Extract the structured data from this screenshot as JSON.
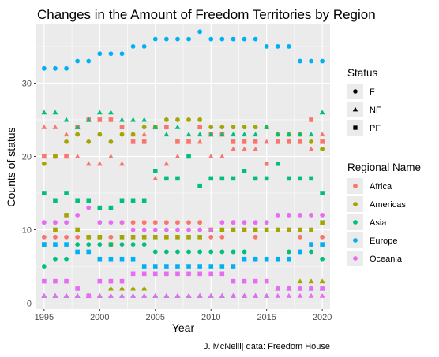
{
  "chart_data": {
    "type": "scatter",
    "title": "Changes in the Amount of Freedom Territories by Region",
    "xlabel": "Year",
    "ylabel": "Counts of status",
    "caption": "J. McNeill| data: Freedom House",
    "xlim": [
      1994.3,
      2020.7
    ],
    "ylim": [
      -0.8,
      38.0
    ],
    "xticks": [
      1995,
      2000,
      2005,
      2010,
      2015,
      2020
    ],
    "yticks": [
      0,
      10,
      20,
      30
    ],
    "grid": true,
    "legend_position": "right",
    "shape_legend": {
      "title": "Status",
      "items": [
        {
          "key": "F",
          "label": "F",
          "shape": "circle"
        },
        {
          "key": "NF",
          "label": "NF",
          "shape": "triangle"
        },
        {
          "key": "PF",
          "label": "PF",
          "shape": "square"
        }
      ]
    },
    "color_legend": {
      "title": "Regional Name",
      "items": [
        {
          "key": "Africa",
          "label": "Africa",
          "color": "#F8766D"
        },
        {
          "key": "Americas",
          "label": "Americas",
          "color": "#A3A500"
        },
        {
          "key": "Asia",
          "label": "Asia",
          "color": "#00BF7D"
        },
        {
          "key": "Europe",
          "label": "Europe",
          "color": "#00B0F6"
        },
        {
          "key": "Oceania",
          "label": "Oceania",
          "color": "#E76BF3"
        }
      ]
    },
    "x": [
      1995,
      1996,
      1997,
      1998,
      1999,
      2000,
      2001,
      2002,
      2003,
      2004,
      2005,
      2006,
      2007,
      2008,
      2009,
      2010,
      2011,
      2012,
      2013,
      2014,
      2015,
      2016,
      2017,
      2018,
      2019,
      2020
    ],
    "series": [
      {
        "region": "Africa",
        "status": "F",
        "values": [
          9,
          9,
          9,
          9,
          9,
          9,
          9,
          11,
          11,
          11,
          11,
          11,
          11,
          11,
          11,
          9,
          9,
          10,
          10,
          9,
          10,
          10,
          10,
          9,
          8,
          9
        ]
      },
      {
        "region": "Africa",
        "status": "NF",
        "values": [
          24,
          24,
          23,
          20,
          19,
          19,
          20,
          19,
          23,
          23,
          17,
          19,
          20,
          22,
          22,
          20,
          20,
          21,
          21,
          21,
          22,
          22,
          23,
          22,
          21,
          23
        ]
      },
      {
        "region": "Africa",
        "status": "PF",
        "values": [
          20,
          20,
          20,
          24,
          25,
          25,
          25,
          24,
          22,
          22,
          24,
          24,
          22,
          22,
          24,
          23,
          23,
          22,
          22,
          22,
          19,
          22,
          22,
          22,
          25,
          22
        ]
      },
      {
        "region": "Americas",
        "status": "F",
        "values": [
          19,
          20,
          22,
          23,
          22,
          23,
          22,
          23,
          23,
          24,
          24,
          25,
          25,
          25,
          25,
          24,
          24,
          24,
          24,
          24,
          24,
          23,
          23,
          23,
          22,
          21
        ]
      },
      {
        "region": "Americas",
        "status": "NF",
        "values": [
          1,
          1,
          1,
          1,
          1,
          1,
          2,
          2,
          2,
          2,
          1,
          1,
          1,
          1,
          1,
          1,
          1,
          1,
          1,
          1,
          1,
          2,
          2,
          3,
          3,
          3
        ]
      },
      {
        "region": "Americas",
        "status": "PF",
        "values": [
          8,
          10,
          12,
          10,
          9,
          9,
          8,
          9,
          9,
          9,
          9,
          9,
          9,
          9,
          9,
          10,
          10,
          10,
          10,
          10,
          10,
          10,
          10,
          10,
          10,
          11
        ]
      },
      {
        "region": "Asia",
        "status": "F",
        "values": [
          5,
          6,
          6,
          8,
          8,
          8,
          8,
          8,
          8,
          8,
          7,
          7,
          7,
          7,
          7,
          7,
          7,
          7,
          7,
          6,
          6,
          6,
          7,
          7,
          7,
          6
        ]
      },
      {
        "region": "Asia",
        "status": "NF",
        "values": [
          26,
          26,
          25,
          24,
          25,
          26,
          26,
          25,
          25,
          25,
          24,
          23,
          24,
          23,
          23,
          23,
          23,
          23,
          23,
          23,
          24,
          23,
          23,
          23,
          23,
          26
        ]
      },
      {
        "region": "Asia",
        "status": "PF",
        "values": [
          15,
          14,
          15,
          14,
          14,
          13,
          13,
          14,
          14,
          14,
          18,
          17,
          17,
          20,
          16,
          17,
          17,
          17,
          18,
          17,
          17,
          19,
          17,
          17,
          17,
          15
        ]
      },
      {
        "region": "Europe",
        "status": "F",
        "values": [
          32,
          32,
          32,
          33,
          33,
          34,
          34,
          34,
          35,
          35,
          36,
          36,
          36,
          36,
          37,
          36,
          36,
          36,
          36,
          36,
          35,
          35,
          35,
          33,
          33,
          33
        ]
      },
      {
        "region": "Europe",
        "status": "NF",
        "values": [
          1,
          1,
          1,
          1,
          1,
          1,
          1,
          1,
          1,
          1,
          1,
          1,
          1,
          1,
          1,
          1,
          1,
          1,
          1,
          1,
          1,
          2,
          2,
          2,
          2,
          2
        ]
      },
      {
        "region": "Europe",
        "status": "PF",
        "values": [
          8,
          8,
          8,
          7,
          7,
          6,
          6,
          6,
          6,
          5,
          5,
          5,
          5,
          5,
          5,
          5,
          5,
          5,
          6,
          6,
          6,
          6,
          6,
          7,
          8,
          8
        ]
      },
      {
        "region": "Oceania",
        "status": "F",
        "values": [
          11,
          11,
          11,
          12,
          13,
          11,
          11,
          11,
          10,
          10,
          10,
          10,
          10,
          10,
          10,
          10,
          11,
          11,
          11,
          11,
          11,
          12,
          12,
          12,
          12,
          12
        ]
      },
      {
        "region": "Oceania",
        "status": "NF",
        "values": [
          1,
          1,
          1,
          1,
          1,
          1,
          1,
          1,
          1,
          1,
          1,
          1,
          1,
          1,
          1,
          1,
          1,
          1,
          1,
          1,
          1,
          1,
          1,
          1,
          1,
          1
        ]
      },
      {
        "region": "Oceania",
        "status": "PF",
        "values": [
          3,
          3,
          3,
          2,
          1,
          3,
          3,
          3,
          4,
          4,
          4,
          4,
          4,
          4,
          4,
          4,
          4,
          3,
          3,
          3,
          3,
          2,
          2,
          2,
          2,
          2
        ]
      }
    ]
  }
}
